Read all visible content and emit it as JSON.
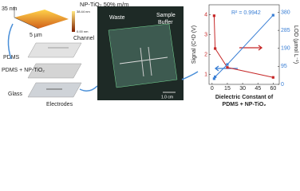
{
  "afm": {
    "title": "NP-TiO₂ 50% m/m",
    "height": "35 nm",
    "scale_max": "38.44 nm",
    "scale_min": "0.00 nm",
    "width": "5 µm"
  },
  "layers": {
    "channel": "Channel",
    "pdms": "PDMS",
    "pdms_tio2": "PDMS + NP-TiO₂",
    "glass": "Glass",
    "electrodes": "Electrodes"
  },
  "photo": {
    "waste": "Waste",
    "sample": "Sample",
    "buffer": "Buffer",
    "scale": "1.0 cm"
  },
  "chart": {
    "type": "line",
    "y_label": "Signal (C⁴D (V)",
    "y2_label": "LOD (µmol L⁻¹)",
    "x_label": [
      "Dielectric Constant of",
      "PDMS + NP-TiO₂"
    ],
    "annotation": "R² = 0.9942",
    "x": [
      2,
      3,
      15,
      60
    ],
    "xlim": [
      -3,
      66
    ],
    "xticks": [
      0,
      15,
      30,
      45,
      60
    ],
    "ylim": [
      0.5,
      4.5
    ],
    "yticks": [
      1,
      2,
      3,
      4
    ],
    "y2lim": [
      0,
      420
    ],
    "y2ticks": [
      0,
      95,
      190,
      285,
      380
    ],
    "series": [
      {
        "name": "Signal",
        "color": "#c62828",
        "values": [
          3.95,
          2.3,
          1.35,
          0.85
        ]
      },
      {
        "name": "LOD",
        "color": "#3a7fd5",
        "axis": "y2",
        "values": [
          30,
          40,
          105,
          365
        ]
      }
    ]
  }
}
